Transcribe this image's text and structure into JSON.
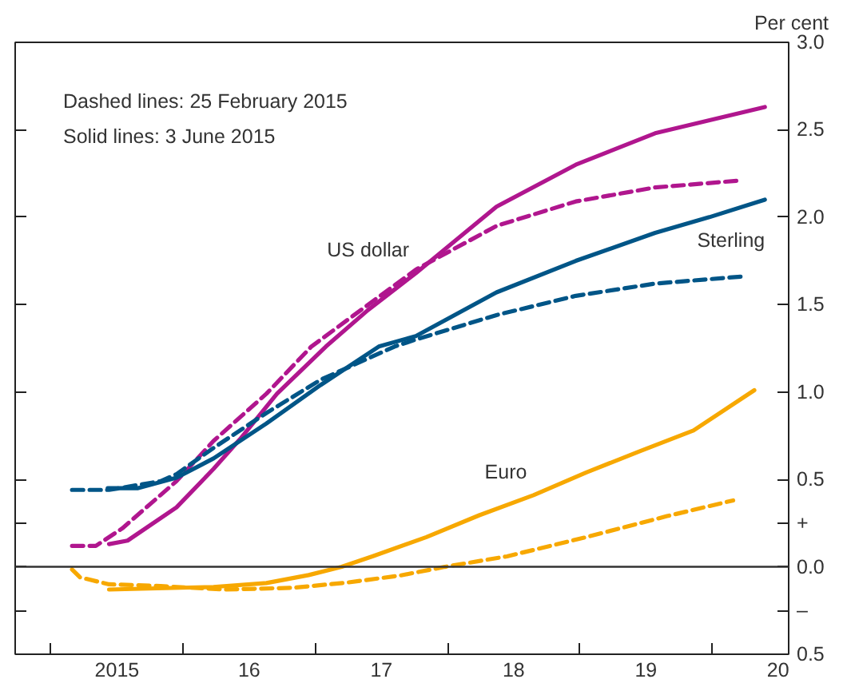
{
  "chart_data": {
    "type": "line",
    "ylabel": "Per cent",
    "xlim": [
      2014.23,
      2020.08
    ],
    "ylim": [
      -0.5,
      3.0
    ],
    "xticks": [
      {
        "value": 2014.5,
        "label": null
      },
      {
        "value": 2015,
        "label": "2015"
      },
      {
        "value": 2015.5,
        "label": null
      },
      {
        "value": 2016,
        "label": "16"
      },
      {
        "value": 2016.5,
        "label": null
      },
      {
        "value": 2017,
        "label": "17"
      },
      {
        "value": 2017.5,
        "label": null
      },
      {
        "value": 2018,
        "label": "18"
      },
      {
        "value": 2018.5,
        "label": null
      },
      {
        "value": 2019,
        "label": "19"
      },
      {
        "value": 2019.5,
        "label": null
      },
      {
        "value": 2020,
        "label": "20"
      }
    ],
    "yticks": [
      {
        "value": 3.0,
        "label": "3.0"
      },
      {
        "value": 2.5,
        "label": "2.5"
      },
      {
        "value": 2.0,
        "label": "2.0"
      },
      {
        "value": 1.5,
        "label": "1.5"
      },
      {
        "value": 1.0,
        "label": "1.0"
      },
      {
        "value": 0.5,
        "label": "0.5"
      },
      {
        "value": 0.25,
        "label": "+"
      },
      {
        "value": 0.0,
        "label": "0.0"
      },
      {
        "value": -0.25,
        "label": "–"
      },
      {
        "value": -0.5,
        "label": "0.5"
      }
    ],
    "grid": false,
    "legend": false,
    "marker": "none",
    "ref_lines": [
      {
        "axis": "y",
        "value": 0,
        "label": null,
        "color": "#333333"
      }
    ],
    "series": [
      {
        "name": "US dollar",
        "color": "#b0168e",
        "line_style": "solid",
        "x": [
          2014.94,
          2015.08,
          2015.45,
          2015.73,
          2015.93,
          2016.21,
          2016.58,
          2016.9,
          2017.26,
          2017.87,
          2018.47,
          2019.07,
          2019.9
        ],
        "values": [
          0.13,
          0.15,
          0.34,
          0.56,
          0.73,
          0.99,
          1.26,
          1.47,
          1.68,
          2.06,
          2.3,
          2.48,
          2.63
        ]
      },
      {
        "color": "#b0168e",
        "line_style": "dashed",
        "x": [
          2014.66,
          2014.84,
          2015.04,
          2015.45,
          2015.73,
          2016.13,
          2016.47,
          2017.26,
          2017.87,
          2018.47,
          2019.07,
          2019.72
        ],
        "values": [
          0.12,
          0.12,
          0.22,
          0.49,
          0.72,
          0.99,
          1.26,
          1.7,
          1.95,
          2.09,
          2.17,
          2.21
        ]
      },
      {
        "name": "Sterling",
        "color": "#005587",
        "line_style": "solid",
        "x": [
          2014.93,
          2015.16,
          2015.45,
          2015.73,
          2016.13,
          2016.54,
          2016.98,
          2017.26,
          2017.87,
          2018.47,
          2019.07,
          2019.48,
          2019.9
        ],
        "values": [
          0.45,
          0.45,
          0.51,
          0.62,
          0.82,
          1.04,
          1.26,
          1.32,
          1.57,
          1.75,
          1.91,
          2.0,
          2.1
        ]
      },
      {
        "color": "#005587",
        "line_style": "dashed",
        "x": [
          2014.66,
          2014.94,
          2015.33,
          2015.45,
          2015.73,
          2016.13,
          2016.54,
          2017.1,
          2017.26,
          2017.87,
          2018.47,
          2019.07,
          2019.72
        ],
        "values": [
          0.44,
          0.44,
          0.49,
          0.53,
          0.68,
          0.88,
          1.07,
          1.26,
          1.3,
          1.44,
          1.55,
          1.62,
          1.66
        ]
      },
      {
        "name": "Euro",
        "color": "#f7a800",
        "line_style": "solid",
        "x": [
          2014.94,
          2015.73,
          2016.13,
          2016.45,
          2016.7,
          2016.94,
          2017.34,
          2017.74,
          2018.15,
          2018.55,
          2018.95,
          2019.36,
          2019.82
        ],
        "values": [
          -0.13,
          -0.115,
          -0.093,
          -0.047,
          0.0,
          0.062,
          0.17,
          0.295,
          0.41,
          0.54,
          0.66,
          0.78,
          1.01
        ]
      },
      {
        "color": "#f7a800",
        "line_style": "dashed",
        "x": [
          2014.66,
          2014.72,
          2014.94,
          2015.33,
          2015.81,
          2016.33,
          2016.74,
          2017.14,
          2017.48,
          2017.95,
          2018.55,
          2019.16,
          2019.66
        ],
        "values": [
          -0.015,
          -0.06,
          -0.1,
          -0.11,
          -0.13,
          -0.12,
          -0.09,
          -0.05,
          0.0,
          0.06,
          0.17,
          0.29,
          0.38
        ]
      }
    ],
    "annotations": [
      "Dashed lines:  25 February 2015",
      "Solid lines:  3 June 2015"
    ]
  }
}
